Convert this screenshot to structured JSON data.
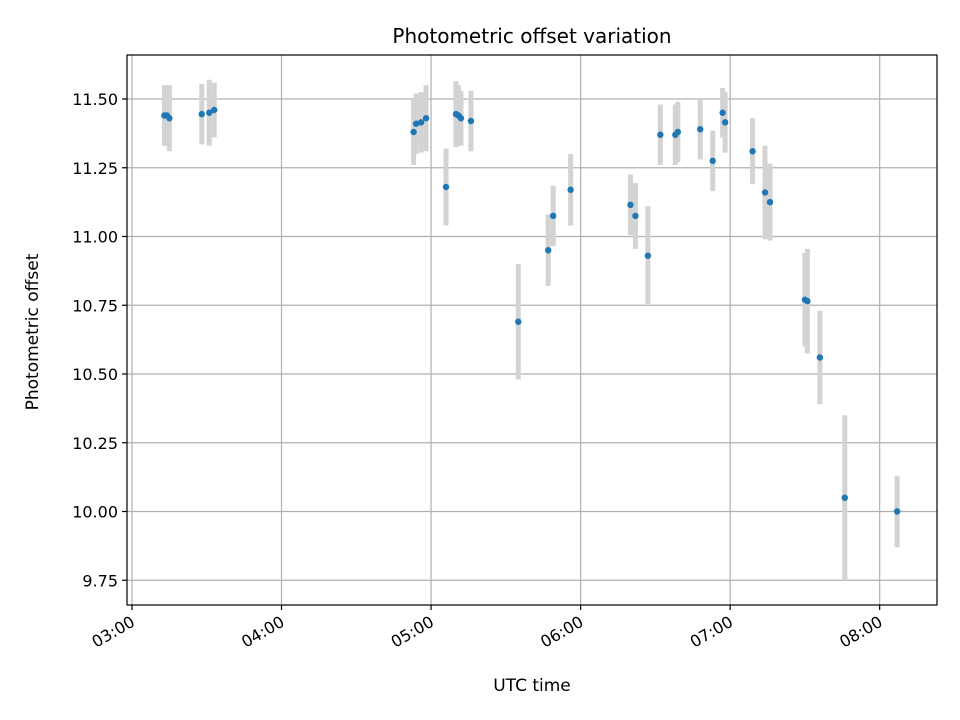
{
  "chart_data": {
    "type": "scatter",
    "title": "Photometric offset variation",
    "xlabel": "UTC time",
    "ylabel": "Photometric offset",
    "x_ticks": [
      "03:00",
      "04:00",
      "05:00",
      "06:00",
      "07:00",
      "08:00"
    ],
    "y_ticks": [
      "9.75",
      "10.00",
      "10.25",
      "10.50",
      "10.75",
      "11.00",
      "11.25",
      "11.50"
    ],
    "xlim": [
      "02:58",
      "08:23"
    ],
    "ylim": [
      9.66,
      11.66
    ],
    "grid": true,
    "colors": {
      "point": "#1f77b4",
      "errorbar": "#d3d3d3",
      "grid": "#b0b0b0"
    },
    "points": [
      {
        "t": "03:13",
        "y": 11.44,
        "err": 0.11
      },
      {
        "t": "03:14",
        "y": 11.44,
        "err": 0.11
      },
      {
        "t": "03:15",
        "y": 11.43,
        "err": 0.12
      },
      {
        "t": "03:28",
        "y": 11.445,
        "err": 0.11
      },
      {
        "t": "03:31",
        "y": 11.45,
        "err": 0.12
      },
      {
        "t": "03:33",
        "y": 11.46,
        "err": 0.1
      },
      {
        "t": "04:53",
        "y": 11.38,
        "err": 0.12
      },
      {
        "t": "04:54",
        "y": 11.41,
        "err": 0.11
      },
      {
        "t": "04:56",
        "y": 11.415,
        "err": 0.11
      },
      {
        "t": "04:58",
        "y": 11.43,
        "err": 0.12
      },
      {
        "t": "05:06",
        "y": 11.18,
        "err": 0.14
      },
      {
        "t": "05:10",
        "y": 11.445,
        "err": 0.12
      },
      {
        "t": "05:11",
        "y": 11.44,
        "err": 0.11
      },
      {
        "t": "05:12",
        "y": 11.43,
        "err": 0.1
      },
      {
        "t": "05:16",
        "y": 11.42,
        "err": 0.11
      },
      {
        "t": "05:35",
        "y": 10.69,
        "err": 0.21
      },
      {
        "t": "05:47",
        "y": 10.95,
        "err": 0.13
      },
      {
        "t": "05:49",
        "y": 11.075,
        "err": 0.11
      },
      {
        "t": "05:56",
        "y": 11.17,
        "err": 0.13
      },
      {
        "t": "06:20",
        "y": 11.115,
        "err": 0.11
      },
      {
        "t": "06:22",
        "y": 11.075,
        "err": 0.12
      },
      {
        "t": "06:27",
        "y": 10.93,
        "err": 0.18
      },
      {
        "t": "06:32",
        "y": 11.37,
        "err": 0.11
      },
      {
        "t": "06:38",
        "y": 11.37,
        "err": 0.11
      },
      {
        "t": "06:39",
        "y": 11.38,
        "err": 0.11
      },
      {
        "t": "06:48",
        "y": 11.39,
        "err": 0.11
      },
      {
        "t": "06:53",
        "y": 11.275,
        "err": 0.11
      },
      {
        "t": "06:57",
        "y": 11.45,
        "err": 0.09
      },
      {
        "t": "06:58",
        "y": 11.415,
        "err": 0.11
      },
      {
        "t": "07:09",
        "y": 11.31,
        "err": 0.12
      },
      {
        "t": "07:14",
        "y": 11.16,
        "err": 0.17
      },
      {
        "t": "07:16",
        "y": 11.125,
        "err": 0.14
      },
      {
        "t": "07:30",
        "y": 10.77,
        "err": 0.17
      },
      {
        "t": "07:31",
        "y": 10.765,
        "err": 0.19
      },
      {
        "t": "07:36",
        "y": 10.56,
        "err": 0.17
      },
      {
        "t": "07:46",
        "y": 10.05,
        "err": 0.3
      },
      {
        "t": "08:07",
        "y": 10.0,
        "err": 0.13
      }
    ]
  }
}
